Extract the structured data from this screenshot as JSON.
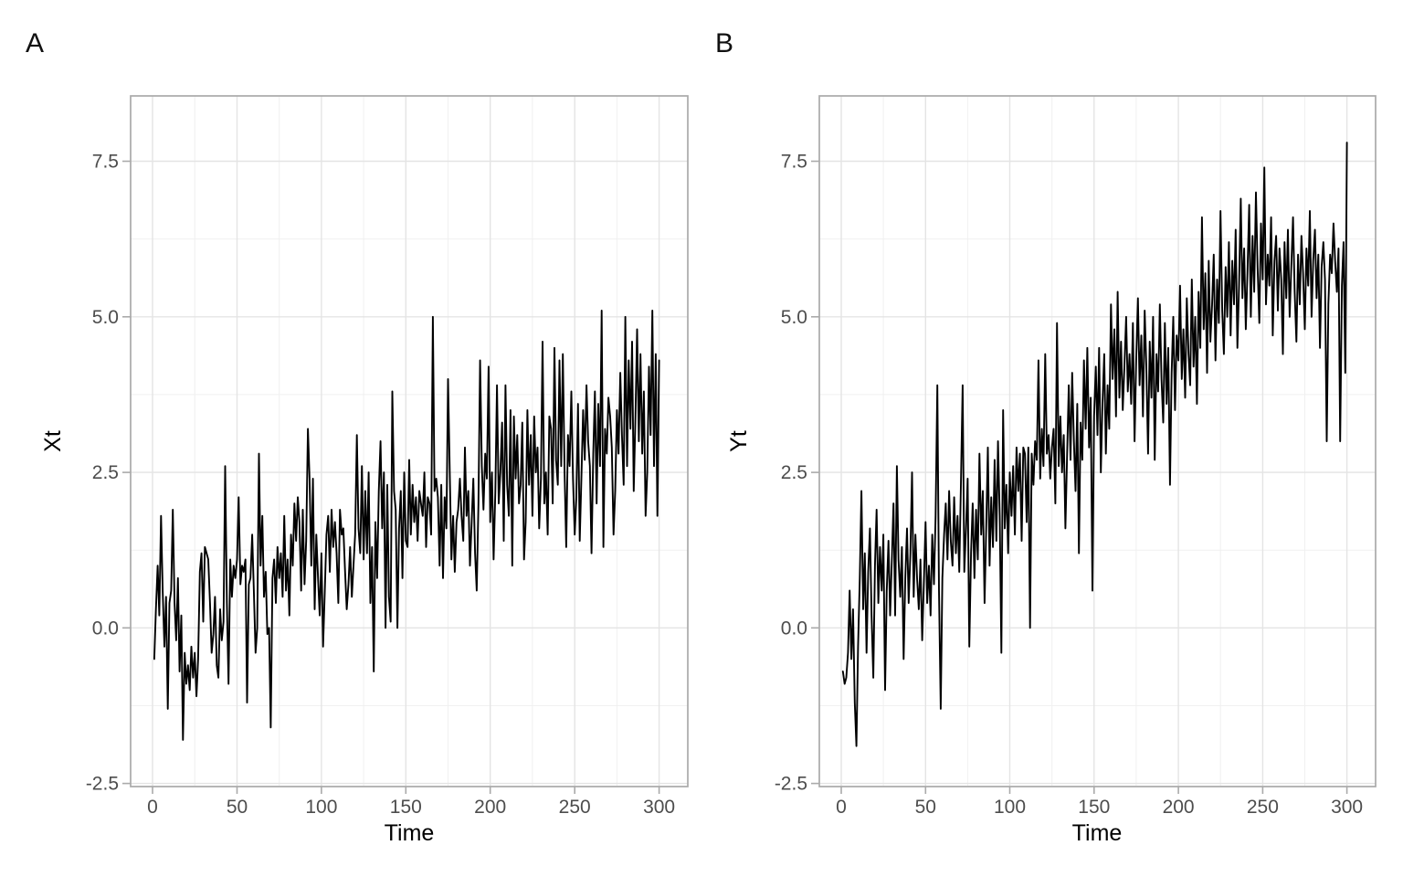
{
  "figure": {
    "description": "Two-panel time series figure",
    "background": "#ffffff"
  },
  "colors": {
    "series_line": "#000000",
    "panel_border": "#aaaaaa",
    "grid_major": "#e4e4e4",
    "grid_minor": "#f0f0f0",
    "tick_mark": "#aaaaaa",
    "tick_label": "#4d4d4d",
    "axis_title": "#000000",
    "panel_label": "#111111",
    "background": "#ffffff"
  },
  "chart_data": [
    {
      "type": "line",
      "panel_label": "A",
      "xlabel": "Time",
      "ylabel": "Xt",
      "x_start": 1,
      "x_step": 1,
      "n_points": 300,
      "xlim": [
        -13,
        317
      ],
      "ylim": [
        -2.55,
        8.55
      ],
      "x_ticks": [
        0,
        50,
        100,
        150,
        200,
        250,
        300
      ],
      "x_tick_labels": [
        "0",
        "50",
        "100",
        "150",
        "200",
        "250",
        "300"
      ],
      "y_ticks": [
        -2.5,
        0.0,
        2.5,
        5.0,
        7.5
      ],
      "y_tick_labels": [
        "-2.5",
        "0.0",
        "2.5",
        "5.0",
        "7.5"
      ],
      "grid": "major and minor, light gray",
      "legend": "none",
      "values": [
        -0.5,
        0.3,
        1.0,
        0.2,
        1.8,
        0.6,
        -0.3,
        0.5,
        -1.3,
        0.4,
        0.6,
        1.9,
        0.4,
        -0.2,
        0.8,
        -0.7,
        0.2,
        -1.8,
        -0.4,
        -0.9,
        -0.6,
        -1.0,
        -0.3,
        -0.8,
        -0.4,
        -1.1,
        -0.5,
        0.9,
        1.2,
        0.1,
        1.3,
        1.2,
        1.1,
        0.4,
        -0.4,
        -0.1,
        0.5,
        -0.6,
        -0.8,
        0.3,
        -0.2,
        0.1,
        2.6,
        0.4,
        -0.9,
        1.1,
        0.5,
        1.0,
        0.8,
        1.1,
        2.1,
        0.7,
        1.0,
        0.9,
        1.1,
        -1.2,
        0.7,
        0.8,
        1.5,
        0.6,
        -0.4,
        0.0,
        2.8,
        1.0,
        1.8,
        0.5,
        0.9,
        -0.1,
        0.0,
        -1.6,
        0.8,
        1.1,
        0.4,
        1.3,
        0.8,
        1.2,
        0.5,
        1.8,
        0.6,
        1.1,
        0.2,
        1.5,
        1.0,
        2.0,
        1.4,
        2.1,
        1.7,
        0.6,
        1.9,
        0.7,
        1.4,
        3.2,
        2.4,
        1.0,
        2.4,
        0.3,
        1.5,
        0.8,
        0.2,
        1.2,
        -0.3,
        0.6,
        1.5,
        1.8,
        0.9,
        1.9,
        1.3,
        1.7,
        1.2,
        0.4,
        1.9,
        1.5,
        1.6,
        0.9,
        0.3,
        0.7,
        1.3,
        0.5,
        1.0,
        1.5,
        3.1,
        1.6,
        1.2,
        2.6,
        1.1,
        2.2,
        1.2,
        2.5,
        0.4,
        1.3,
        -0.7,
        1.7,
        0.8,
        2.2,
        3.0,
        1.6,
        2.5,
        0.0,
        2.3,
        0.5,
        0.1,
        3.8,
        2.2,
        1.9,
        0.0,
        1.6,
        2.2,
        0.8,
        2.5,
        1.4,
        1.3,
        2.7,
        1.5,
        2.3,
        1.7,
        2.1,
        1.4,
        2.2,
        2.0,
        1.8,
        2.5,
        1.3,
        2.1,
        2.0,
        1.5,
        5.0,
        2.2,
        2.4,
        2.1,
        1.0,
        2.3,
        0.8,
        2.1,
        1.6,
        4.0,
        2.5,
        1.1,
        1.8,
        0.9,
        1.7,
        1.9,
        2.4,
        1.8,
        1.4,
        2.9,
        1.8,
        2.2,
        1.0,
        1.7,
        2.4,
        1.2,
        0.6,
        2.0,
        4.3,
        2.6,
        1.9,
        2.8,
        2.4,
        4.2,
        1.7,
        2.5,
        1.1,
        2.2,
        3.9,
        2.0,
        2.5,
        3.3,
        1.4,
        3.9,
        2.3,
        1.8,
        3.5,
        1.0,
        3.4,
        2.4,
        3.1,
        2.0,
        2.3,
        3.3,
        1.1,
        1.7,
        3.5,
        2.3,
        3.1,
        1.8,
        3.4,
        2.5,
        2.9,
        1.6,
        2.4,
        4.6,
        2.0,
        2.5,
        1.5,
        3.4,
        3.2,
        2.0,
        4.5,
        2.7,
        2.3,
        4.3,
        2.6,
        4.4,
        2.5,
        1.3,
        3.1,
        2.6,
        3.8,
        2.4,
        1.5,
        2.1,
        3.6,
        1.4,
        2.4,
        3.5,
        2.7,
        3.9,
        3.0,
        2.6,
        1.2,
        2.8,
        3.8,
        2.0,
        3.6,
        2.6,
        5.1,
        1.3,
        3.2,
        2.8,
        3.7,
        3.4,
        2.9,
        1.5,
        2.2,
        3.5,
        2.8,
        4.1,
        3.1,
        2.3,
        5.0,
        2.6,
        4.3,
        3.2,
        4.6,
        2.2,
        3.4,
        4.8,
        3.0,
        4.4,
        2.8,
        3.8,
        1.8,
        2.5,
        4.2,
        3.1,
        5.1,
        2.6,
        4.4,
        1.8,
        4.3
      ]
    },
    {
      "type": "line",
      "panel_label": "B",
      "xlabel": "Time",
      "ylabel": "Yt",
      "x_start": 1,
      "x_step": 1,
      "n_points": 300,
      "xlim": [
        -13,
        317
      ],
      "ylim": [
        -2.55,
        8.55
      ],
      "x_ticks": [
        0,
        50,
        100,
        150,
        200,
        250,
        300
      ],
      "x_tick_labels": [
        "0",
        "50",
        "100",
        "150",
        "200",
        "250",
        "300"
      ],
      "y_ticks": [
        -2.5,
        0.0,
        2.5,
        5.0,
        7.5
      ],
      "y_tick_labels": [
        "-2.5",
        "0.0",
        "2.5",
        "5.0",
        "7.5"
      ],
      "grid": "major and minor, light gray",
      "legend": "none",
      "values": [
        -0.7,
        -0.9,
        -0.8,
        -0.4,
        0.6,
        -0.5,
        0.3,
        -1.2,
        -1.9,
        -0.3,
        0.8,
        2.2,
        0.3,
        1.2,
        -0.4,
        0.9,
        1.6,
        0.2,
        -0.8,
        1.0,
        1.9,
        0.4,
        1.3,
        0.6,
        1.5,
        -1.0,
        0.6,
        1.4,
        0.2,
        1.1,
        2.0,
        0.2,
        2.6,
        1.1,
        0.5,
        1.3,
        -0.5,
        0.8,
        1.6,
        0.4,
        1.2,
        2.5,
        0.5,
        1.5,
        0.8,
        0.3,
        1.1,
        -0.2,
        0.7,
        1.7,
        0.4,
        1.0,
        0.2,
        1.5,
        0.7,
        1.8,
        3.9,
        0.6,
        -1.3,
        0.8,
        1.5,
        2.0,
        1.1,
        2.2,
        1.4,
        1.0,
        2.1,
        1.2,
        1.8,
        0.9,
        2.3,
        3.9,
        0.9,
        1.6,
        2.4,
        -0.3,
        1.2,
        2.0,
        0.8,
        1.9,
        1.1,
        2.8,
        1.5,
        2.2,
        0.4,
        1.6,
        2.9,
        1.0,
        2.1,
        1.3,
        2.7,
        1.4,
        3.0,
        1.8,
        -0.4,
        3.5,
        1.6,
        2.3,
        1.2,
        2.5,
        1.8,
        2.6,
        1.5,
        2.9,
        2.2,
        2.8,
        1.4,
        2.9,
        2.8,
        1.7,
        2.9,
        0.0,
        2.8,
        2.3,
        3.0,
        2.7,
        4.3,
        2.4,
        3.2,
        2.6,
        4.4,
        2.8,
        3.1,
        2.4,
        2.9,
        3.2,
        2.0,
        4.9,
        2.6,
        3.4,
        2.5,
        3.1,
        1.6,
        2.8,
        3.9,
        2.7,
        4.1,
        3.0,
        2.2,
        3.6,
        1.2,
        3.3,
        2.7,
        4.3,
        3.2,
        4.5,
        2.9,
        3.7,
        0.6,
        3.4,
        4.2,
        3.1,
        4.5,
        2.5,
        3.6,
        4.4,
        2.8,
        3.9,
        3.2,
        5.2,
        4.0,
        4.8,
        3.4,
        5.4,
        3.7,
        4.6,
        3.5,
        4.2,
        5.0,
        3.8,
        4.4,
        3.6,
        4.9,
        3.0,
        4.3,
        5.3,
        3.9,
        4.7,
        3.4,
        5.1,
        4.2,
        2.8,
        4.6,
        3.7,
        5.0,
        2.7,
        4.4,
        3.8,
        5.2,
        4.0,
        3.3,
        4.9,
        3.6,
        4.5,
        2.3,
        4.1,
        5.0,
        3.5,
        4.7,
        4.3,
        5.5,
        4.0,
        4.8,
        3.7,
        5.3,
        4.4,
        3.9,
        5.6,
        4.2,
        5.0,
        3.6,
        5.4,
        4.5,
        6.6,
        4.8,
        5.7,
        4.1,
        5.9,
        4.6,
        5.2,
        6.0,
        4.3,
        5.6,
        4.9,
        6.7,
        5.1,
        4.4,
        5.8,
        5.0,
        6.2,
        4.7,
        5.9,
        5.2,
        6.4,
        4.5,
        5.5,
        6.9,
        5.3,
        6.1,
        4.8,
        5.7,
        6.8,
        5.0,
        6.3,
        5.4,
        7.0,
        5.8,
        4.9,
        6.5,
        5.6,
        7.4,
        5.2,
        6.0,
        5.5,
        6.6,
        4.7,
        5.9,
        6.3,
        5.1,
        6.1,
        5.6,
        4.4,
        6.2,
        5.3,
        6.4,
        5.0,
        5.8,
        6.6,
        5.4,
        4.6,
        6.0,
        5.2,
        6.3,
        5.7,
        4.8,
        6.1,
        5.5,
        6.7,
        5.0,
        5.9,
        6.4,
        5.3,
        6.0,
        4.5,
        5.8,
        6.2,
        5.6,
        3.0,
        5.2,
        6.0,
        5.7,
        6.5,
        5.9,
        5.4,
        6.1,
        3.0,
        5.5,
        6.2,
        4.1,
        7.8
      ]
    }
  ]
}
